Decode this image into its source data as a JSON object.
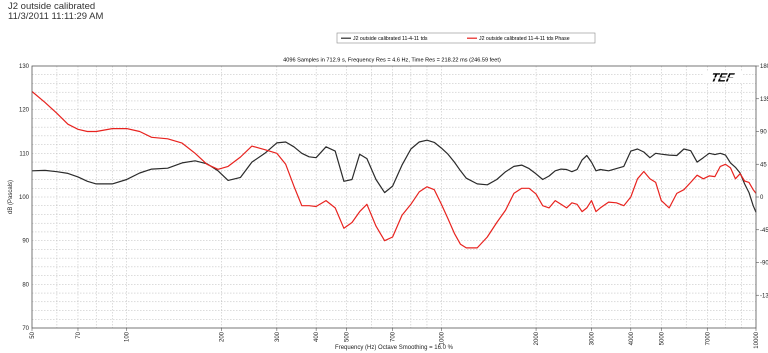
{
  "header": {
    "title": "J2 outside calibrated",
    "timestamp": "11/3/2011 11:11:29 AM"
  },
  "colors": {
    "magnitude": "#2b2b2b",
    "phase": "#e8231f",
    "grid": "#b8b8b8",
    "frame": "#555555"
  },
  "logo_text": "TEF",
  "chart_data": {
    "type": "line",
    "title": "4096 Samples in 712.9 s, Frequency Res = 4.6 Hz, Time Res = 218.22 ms (246.59 feet)",
    "xlabel": "Frequency (Hz) Octave Smoothing = 16.0 %",
    "ylabel": "dB (Pascals)",
    "x_scale": "log",
    "xlim": [
      50,
      10000
    ],
    "ylim": [
      70,
      130
    ],
    "y2lim": [
      -180,
      180
    ],
    "grid": true,
    "legend_position": "top",
    "x_tick_labels": [
      "50",
      "70",
      "100",
      "200",
      "300",
      "400",
      "500",
      "700",
      "1000",
      "2000",
      "3000",
      "4000",
      "5000",
      "7000",
      "10000"
    ],
    "x_tick_values": [
      50,
      70,
      100,
      200,
      300,
      400,
      500,
      700,
      1000,
      2000,
      3000,
      4000,
      5000,
      7000,
      10000
    ],
    "y_tick_labels": [
      "70",
      "80",
      "90",
      "100",
      "110",
      "120",
      "130"
    ],
    "y_tick_values": [
      70,
      80,
      90,
      100,
      110,
      120,
      130
    ],
    "y2_tick_labels": [
      "-135",
      "-90",
      "-45",
      "0",
      "45",
      "90",
      "135",
      "180"
    ],
    "y2_tick_values": [
      -135,
      -90,
      -45,
      0,
      45,
      90,
      135,
      180
    ],
    "series": [
      {
        "name": "J2 outside calibrated 11-4-11 tds",
        "axis": "left",
        "color": "#2b2b2b",
        "x": [
          50,
          55,
          60,
          65,
          70,
          75,
          80,
          90,
          100,
          110,
          120,
          135,
          150,
          165,
          180,
          195,
          210,
          230,
          250,
          275,
          300,
          320,
          340,
          360,
          380,
          400,
          430,
          460,
          490,
          520,
          550,
          580,
          620,
          660,
          700,
          750,
          800,
          850,
          900,
          950,
          1000,
          1050,
          1100,
          1150,
          1200,
          1300,
          1400,
          1500,
          1600,
          1700,
          1800,
          1900,
          2000,
          2100,
          2200,
          2300,
          2400,
          2500,
          2600,
          2700,
          2800,
          2900,
          3000,
          3100,
          3200,
          3400,
          3600,
          3800,
          4000,
          4200,
          4400,
          4600,
          4800,
          5000,
          5300,
          5600,
          5900,
          6200,
          6500,
          6800,
          7100,
          7400,
          7700,
          8000,
          8300,
          8600,
          8900,
          9200,
          9500,
          9800,
          10000
        ],
        "values": [
          106.0,
          106.1,
          105.8,
          105.4,
          104.6,
          103.6,
          103.0,
          103.0,
          104.0,
          105.5,
          106.4,
          106.6,
          107.8,
          108.3,
          107.6,
          106.0,
          103.8,
          104.5,
          108.0,
          110.0,
          112.4,
          112.6,
          111.5,
          110.0,
          109.2,
          109.0,
          111.5,
          110.5,
          103.6,
          104.0,
          109.8,
          108.8,
          104.0,
          101.0,
          102.5,
          107.3,
          111.0,
          112.6,
          113.0,
          112.5,
          111.2,
          109.8,
          108.0,
          106.0,
          104.3,
          103.0,
          102.8,
          104.0,
          105.8,
          107.0,
          107.3,
          106.5,
          105.3,
          104.0,
          104.8,
          106.0,
          106.4,
          106.3,
          105.8,
          106.3,
          108.5,
          109.5,
          108.0,
          106.0,
          106.3,
          106.0,
          106.5,
          107.0,
          110.5,
          111.0,
          110.3,
          109.0,
          110.0,
          109.8,
          109.6,
          109.5,
          111.0,
          110.6,
          108.0,
          109.0,
          110.0,
          109.7,
          110.0,
          109.6,
          107.8,
          106.8,
          105.5,
          103.0,
          101.0,
          98.0,
          96.5
        ]
      },
      {
        "name": "J2 outside calibrated 11-4-11 tds Phase",
        "axis": "right",
        "color": "#e8231f",
        "x": [
          50,
          55,
          60,
          65,
          70,
          75,
          80,
          90,
          100,
          110,
          120,
          135,
          150,
          165,
          180,
          195,
          210,
          230,
          250,
          275,
          300,
          320,
          340,
          360,
          380,
          400,
          430,
          460,
          490,
          520,
          550,
          580,
          620,
          660,
          700,
          750,
          800,
          850,
          900,
          950,
          1000,
          1050,
          1100,
          1150,
          1200,
          1300,
          1400,
          1500,
          1600,
          1700,
          1800,
          1900,
          2000,
          2100,
          2200,
          2300,
          2400,
          2500,
          2600,
          2700,
          2800,
          2900,
          3000,
          3100,
          3200,
          3400,
          3600,
          3800,
          4000,
          4200,
          4400,
          4600,
          4800,
          5000,
          5300,
          5600,
          5900,
          6200,
          6500,
          6800,
          7100,
          7400,
          7700,
          8000,
          8300,
          8600,
          8900,
          9200,
          9500,
          9800,
          10000
        ],
        "values": [
          145,
          130,
          115,
          100,
          93,
          90,
          90,
          94,
          94,
          90,
          82,
          80,
          74,
          60,
          45,
          38,
          42,
          55,
          70,
          65,
          60,
          45,
          15,
          -12,
          -12,
          -13,
          -5,
          -15,
          -43,
          -35,
          -20,
          -10,
          -40,
          -60,
          -55,
          -25,
          -10,
          7,
          14,
          10,
          -10,
          -30,
          -50,
          -65,
          -70,
          -70,
          -55,
          -35,
          -18,
          5,
          12,
          12,
          4,
          -12,
          -15,
          -5,
          -10,
          -15,
          -8,
          -10,
          -20,
          -15,
          -5,
          -20,
          -15,
          -7,
          -8,
          -12,
          0,
          25,
          35,
          25,
          20,
          -5,
          -15,
          5,
          10,
          20,
          30,
          25,
          29,
          28,
          42,
          45,
          40,
          25,
          32,
          22,
          20,
          10,
          5
        ]
      }
    ]
  }
}
